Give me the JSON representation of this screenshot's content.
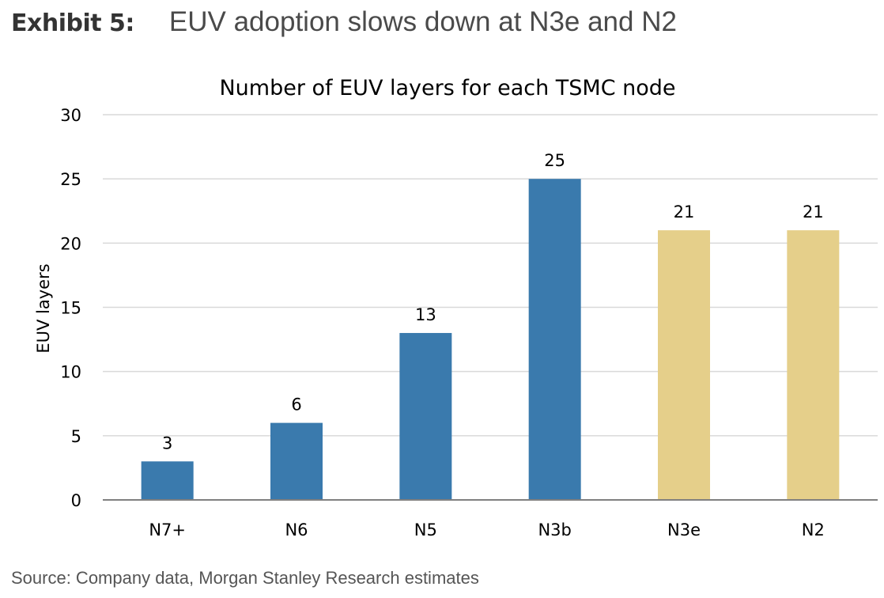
{
  "exhibit": {
    "label": "Exhibit 5:",
    "headline": "EUV adoption slows down at N3e and N2"
  },
  "source": "Source: Company data, Morgan Stanley Research estimates",
  "colors": {
    "actual_bar": "#3a7aad",
    "estimate_bar": "#e5cf8a",
    "grid": "#d9d9d9",
    "axis": "#808080"
  },
  "chart_data": {
    "type": "bar",
    "title": "Number of EUV layers for each TSMC node",
    "xlabel": "",
    "ylabel": "EUV layers",
    "categories": [
      "N7+",
      "N6",
      "N5",
      "N3b",
      "N3e",
      "N2"
    ],
    "values": [
      3,
      6,
      13,
      25,
      21,
      21
    ],
    "bar_colors": [
      "#3a7aad",
      "#3a7aad",
      "#3a7aad",
      "#3a7aad",
      "#e5cf8a",
      "#e5cf8a"
    ],
    "data_labels": [
      "3",
      "6",
      "13",
      "25",
      "21",
      "21"
    ],
    "ylim": [
      0,
      30
    ],
    "yticks": [
      0,
      5,
      10,
      15,
      20,
      25,
      30
    ],
    "grid": true,
    "legend": "none"
  }
}
